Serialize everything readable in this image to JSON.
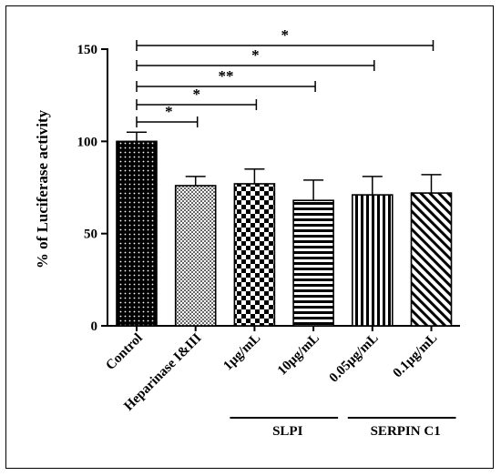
{
  "chart_data": {
    "type": "bar",
    "ylabel": "% of Luciferase activity",
    "ylim": [
      0,
      150
    ],
    "yticks": [
      "0",
      "50",
      "100",
      "150"
    ],
    "categories": [
      "Control",
      "Heparinase I&III",
      "1μg/mL",
      "10μg/mL",
      "0.05μg/mL",
      "0.1μg/mL"
    ],
    "values": [
      100,
      76,
      77,
      68,
      71,
      72
    ],
    "errors": [
      5,
      5,
      8,
      11,
      10,
      10
    ],
    "patterns": [
      "dots",
      "fine-check",
      "checker",
      "horizontal-lines",
      "vertical-lines",
      "diagonal-lines"
    ],
    "groups": [
      {
        "label": "SLPI",
        "members": [
          2,
          3
        ]
      },
      {
        "label": "SERPIN C1",
        "members": [
          4,
          5
        ]
      }
    ],
    "significance": [
      {
        "from": 0,
        "to": 1,
        "label": "*"
      },
      {
        "from": 0,
        "to": 2,
        "label": "*"
      },
      {
        "from": 0,
        "to": 3,
        "label": "**"
      },
      {
        "from": 0,
        "to": 4,
        "label": "*"
      },
      {
        "from": 0,
        "to": 5,
        "label": "*"
      }
    ],
    "colors": {
      "bar_fill": "#ffffff",
      "ink": "#000000"
    }
  }
}
